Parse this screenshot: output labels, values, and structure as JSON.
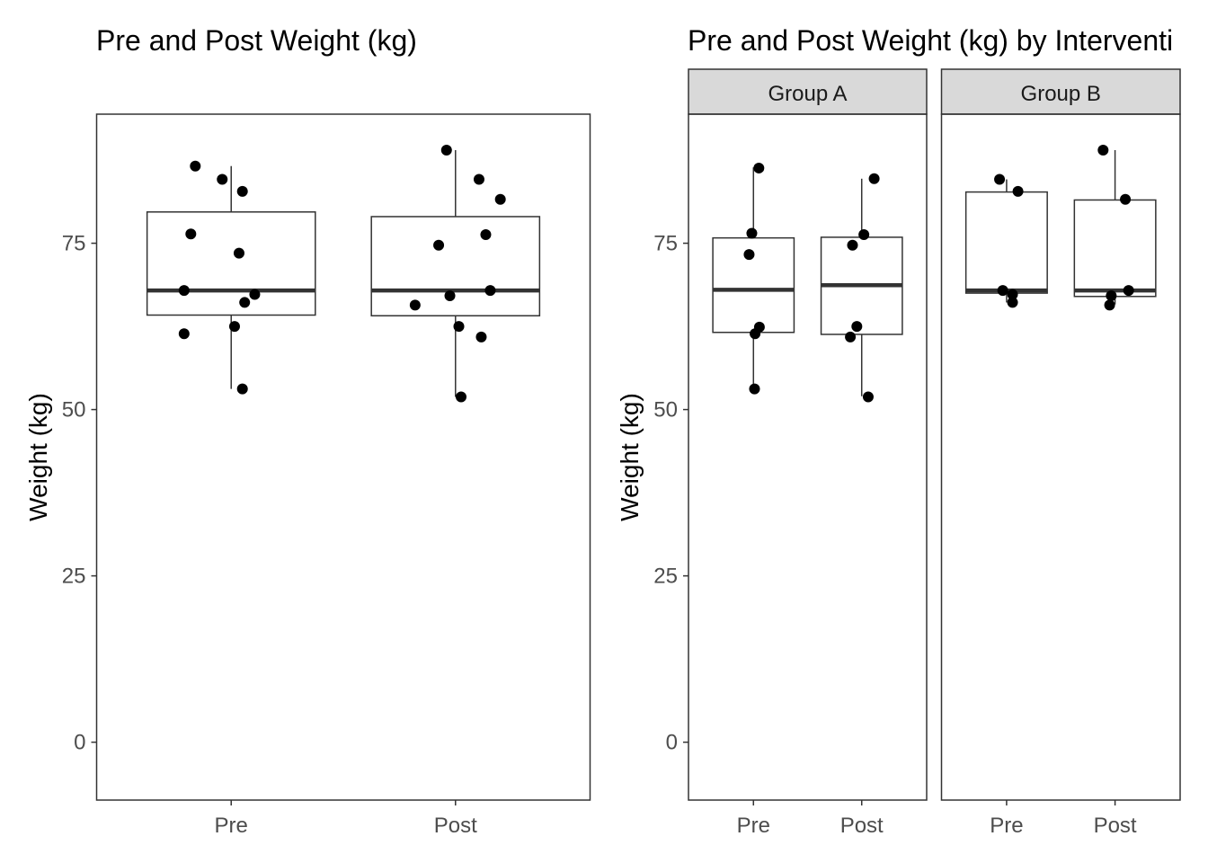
{
  "chart_data": [
    {
      "type": "boxplot",
      "title": "Pre and Post Weight (kg)",
      "xlabel": "",
      "ylabel": "Weight (kg)",
      "ylim": [
        -8.7,
        94.4
      ],
      "yticks": [
        0,
        25,
        50,
        75
      ],
      "ytick_labels": [
        "0",
        "25",
        "50",
        "75"
      ],
      "grid": false,
      "categories": [
        "Pre",
        "Post"
      ],
      "panels": [
        {
          "strip_label": "",
          "boxes": [
            {
              "category": "Pre",
              "min": 53.1,
              "q1": 64.2,
              "median": 67.9,
              "q3": 79.7,
              "max": 86.6
            },
            {
              "category": "Post",
              "min": 51.9,
              "q1": 64.1,
              "median": 67.9,
              "q3": 79.0,
              "max": 89.0
            }
          ],
          "points": [
            {
              "category": "Pre",
              "jitter": -0.32,
              "y": 86.6
            },
            {
              "category": "Pre",
              "jitter": -0.08,
              "y": 84.6
            },
            {
              "category": "Pre",
              "jitter": 0.1,
              "y": 82.8
            },
            {
              "category": "Pre",
              "jitter": -0.36,
              "y": 76.4
            },
            {
              "category": "Pre",
              "jitter": 0.07,
              "y": 73.5
            },
            {
              "category": "Pre",
              "jitter": -0.42,
              "y": 67.9
            },
            {
              "category": "Pre",
              "jitter": 0.21,
              "y": 67.3
            },
            {
              "category": "Pre",
              "jitter": 0.12,
              "y": 66.1
            },
            {
              "category": "Pre",
              "jitter": 0.03,
              "y": 62.5
            },
            {
              "category": "Pre",
              "jitter": -0.42,
              "y": 61.4
            },
            {
              "category": "Pre",
              "jitter": 0.1,
              "y": 53.1
            },
            {
              "category": "Post",
              "jitter": -0.08,
              "y": 89.0
            },
            {
              "category": "Post",
              "jitter": 0.21,
              "y": 84.6
            },
            {
              "category": "Post",
              "jitter": 0.4,
              "y": 81.6
            },
            {
              "category": "Post",
              "jitter": -0.15,
              "y": 74.7
            },
            {
              "category": "Post",
              "jitter": 0.27,
              "y": 76.3
            },
            {
              "category": "Post",
              "jitter": -0.05,
              "y": 67.1
            },
            {
              "category": "Post",
              "jitter": 0.31,
              "y": 67.9
            },
            {
              "category": "Post",
              "jitter": -0.36,
              "y": 65.7
            },
            {
              "category": "Post",
              "jitter": 0.03,
              "y": 62.5
            },
            {
              "category": "Post",
              "jitter": 0.23,
              "y": 60.9
            },
            {
              "category": "Post",
              "jitter": 0.05,
              "y": 51.9
            }
          ]
        }
      ]
    },
    {
      "type": "boxplot",
      "title": "Pre and Post Weight (kg) by Interventi",
      "xlabel": "",
      "ylabel": "Weight (kg)",
      "ylim": [
        -8.7,
        94.4
      ],
      "yticks": [
        0,
        25,
        50,
        75
      ],
      "ytick_labels": [
        "0",
        "25",
        "50",
        "75"
      ],
      "grid": false,
      "categories": [
        "Pre",
        "Post"
      ],
      "panels": [
        {
          "strip_label": "Group A",
          "boxes": [
            {
              "category": "Pre",
              "min": 53.1,
              "q1": 61.6,
              "median": 68.0,
              "q3": 75.8,
              "max": 86.4
            },
            {
              "category": "Post",
              "min": 52.0,
              "q1": 61.3,
              "median": 68.7,
              "q3": 75.9,
              "max": 84.7
            }
          ],
          "points": [
            {
              "category": "Pre",
              "jitter": 0.1,
              "y": 86.3
            },
            {
              "category": "Pre",
              "jitter": -0.03,
              "y": 76.5
            },
            {
              "category": "Pre",
              "jitter": -0.08,
              "y": 73.3
            },
            {
              "category": "Pre",
              "jitter": 0.11,
              "y": 62.4
            },
            {
              "category": "Pre",
              "jitter": 0.03,
              "y": 61.4
            },
            {
              "category": "Pre",
              "jitter": 0.02,
              "y": 53.1
            },
            {
              "category": "Post",
              "jitter": 0.23,
              "y": 84.7
            },
            {
              "category": "Post",
              "jitter": 0.04,
              "y": 76.3
            },
            {
              "category": "Post",
              "jitter": -0.17,
              "y": 74.7
            },
            {
              "category": "Post",
              "jitter": -0.09,
              "y": 62.5
            },
            {
              "category": "Post",
              "jitter": -0.21,
              "y": 60.9
            },
            {
              "category": "Post",
              "jitter": 0.12,
              "y": 51.9
            }
          ]
        },
        {
          "strip_label": "Group B",
          "boxes": [
            {
              "category": "Pre",
              "min": 66.1,
              "q1": 67.5,
              "median": 67.9,
              "q3": 82.7,
              "max": 84.6
            },
            {
              "category": "Post",
              "min": 65.8,
              "q1": 67.0,
              "median": 67.9,
              "q3": 81.5,
              "max": 89.0
            }
          ],
          "points": [
            {
              "category": "Pre",
              "jitter": -0.13,
              "y": 84.6
            },
            {
              "category": "Pre",
              "jitter": 0.21,
              "y": 82.8
            },
            {
              "category": "Pre",
              "jitter": -0.07,
              "y": 67.9
            },
            {
              "category": "Pre",
              "jitter": 0.11,
              "y": 67.3
            },
            {
              "category": "Pre",
              "jitter": 0.11,
              "y": 66.1
            },
            {
              "category": "Post",
              "jitter": -0.22,
              "y": 89.0
            },
            {
              "category": "Post",
              "jitter": 0.19,
              "y": 81.6
            },
            {
              "category": "Post",
              "jitter": 0.25,
              "y": 67.9
            },
            {
              "category": "Post",
              "jitter": -0.07,
              "y": 67.1
            },
            {
              "category": "Post",
              "jitter": -0.1,
              "y": 65.7
            }
          ]
        }
      ]
    }
  ]
}
